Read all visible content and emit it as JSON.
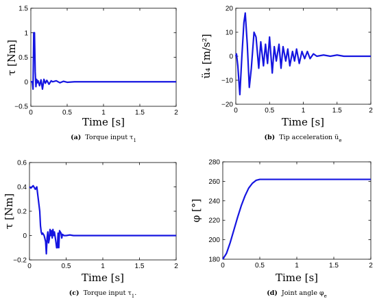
{
  "chart_data": [
    {
      "type": "line",
      "panel": "a",
      "caption_label": "(a)",
      "caption": "Torque input τ",
      "caption_sub": "1",
      "xlabel": "Time [s]",
      "ylabel": "τ [Nm]",
      "xlim": [
        0,
        2
      ],
      "ylim": [
        -0.5,
        1.5
      ],
      "xticks": [
        "0",
        "0.5",
        "1",
        "1.5",
        "2"
      ],
      "yticks": [
        "−0.5",
        "0",
        "0.5",
        "1",
        "1.5"
      ],
      "grid": false,
      "series": [
        {
          "color": "#1515e0",
          "x": [
            0,
            0.02,
            0.03,
            0.04,
            0.05,
            0.06,
            0.07,
            0.08,
            0.09,
            0.1,
            0.12,
            0.14,
            0.16,
            0.18,
            0.2,
            0.22,
            0.25,
            0.28,
            0.3,
            0.35,
            0.4,
            0.45,
            0.5,
            0.6,
            0.8,
            1.0,
            1.2,
            1.4,
            1.6,
            1.8,
            2.0
          ],
          "y": [
            0,
            0,
            -0.15,
            1.0,
            1.0,
            0.2,
            -0.1,
            0.05,
            -0.02,
            0.02,
            -0.08,
            0.04,
            -0.15,
            0.05,
            -0.03,
            0.03,
            -0.05,
            0.02,
            0.0,
            0.02,
            -0.02,
            0.01,
            -0.01,
            0.0,
            0.0,
            0.0,
            0.0,
            0.0,
            0.0,
            0.0,
            0.0
          ]
        }
      ]
    },
    {
      "type": "line",
      "panel": "b",
      "caption_label": "(b)",
      "caption": "Tip acceleration ü",
      "caption_sub": "e",
      "xlabel": "Time [s]",
      "ylabel": "ü₄ [m/s²]",
      "xlim": [
        0,
        2
      ],
      "ylim": [
        -20,
        20
      ],
      "xticks": [
        "0",
        "0.5",
        "1",
        "1.5",
        "2"
      ],
      "yticks": [
        "−20",
        "−10",
        "0",
        "10",
        "20"
      ],
      "grid": false,
      "series": [
        {
          "color": "#1515e0",
          "x": [
            0,
            0.01,
            0.03,
            0.06,
            0.09,
            0.12,
            0.14,
            0.17,
            0.2,
            0.23,
            0.27,
            0.3,
            0.34,
            0.37,
            0.41,
            0.44,
            0.47,
            0.5,
            0.54,
            0.57,
            0.6,
            0.64,
            0.67,
            0.7,
            0.74,
            0.77,
            0.8,
            0.84,
            0.87,
            0.9,
            0.94,
            0.98,
            1.02,
            1.06,
            1.1,
            1.15,
            1.2,
            1.3,
            1.4,
            1.5,
            1.6,
            1.8,
            2.0
          ],
          "y": [
            0,
            1,
            -4,
            -16,
            0,
            14,
            18,
            5,
            -13,
            -5,
            10,
            8,
            -5,
            6,
            -4,
            5,
            -3,
            8,
            -7,
            4,
            -2,
            5,
            -5,
            4,
            -2,
            3,
            -4,
            2,
            -2,
            3,
            -3,
            2,
            -1,
            2,
            -1,
            1,
            0,
            0.5,
            0,
            0.5,
            0,
            0,
            0
          ]
        }
      ]
    },
    {
      "type": "line",
      "panel": "c",
      "caption_label": "(c)",
      "caption": "Torque input τ",
      "caption_sub": "1",
      "caption_suffix": ".",
      "xlabel": "Time [s]",
      "ylabel": "τ [Nm]",
      "xlim": [
        0,
        2
      ],
      "ylim": [
        -0.2,
        0.6
      ],
      "xticks": [
        "0",
        "0.5",
        "1",
        "1.5",
        "2"
      ],
      "yticks": [
        "−0.2",
        "0",
        "0.2",
        "0.4",
        "0.6"
      ],
      "grid": false,
      "series": [
        {
          "color": "#1515e0",
          "x": [
            0,
            0.02,
            0.05,
            0.08,
            0.1,
            0.12,
            0.14,
            0.15,
            0.16,
            0.17,
            0.18,
            0.2,
            0.22,
            0.23,
            0.24,
            0.25,
            0.26,
            0.27,
            0.28,
            0.29,
            0.3,
            0.31,
            0.32,
            0.33,
            0.34,
            0.35,
            0.36,
            0.37,
            0.38,
            0.39,
            0.4,
            0.41,
            0.42,
            0.43,
            0.44,
            0.45,
            0.47,
            0.5,
            0.55,
            0.6,
            0.7,
            0.8,
            1.0,
            1.2,
            1.5,
            1.8,
            2.0
          ],
          "y": [
            0.4,
            0.39,
            0.41,
            0.38,
            0.4,
            0.3,
            0.2,
            0.08,
            0.03,
            0.01,
            0.02,
            0.0,
            -0.05,
            -0.15,
            -0.02,
            0.03,
            -0.06,
            -0.03,
            0.05,
            0.0,
            0.04,
            -0.02,
            0.05,
            0.0,
            0.03,
            -0.01,
            -0.05,
            -0.1,
            -0.1,
            0.02,
            -0.1,
            0.04,
            0.03,
            0.02,
            -0.02,
            0.01,
            0.0,
            0.0,
            0.005,
            0.0,
            0.0,
            0.0,
            0.0,
            0.0,
            0.0,
            0.0,
            0.0
          ]
        }
      ]
    },
    {
      "type": "line",
      "panel": "d",
      "caption_label": "(d)",
      "caption": "Joint angle φ",
      "caption_sub": "e",
      "xlabel": "Time [s]",
      "ylabel": "φ [°]",
      "xlim": [
        0,
        2
      ],
      "ylim": [
        180,
        280
      ],
      "xticks": [
        "0",
        "0.5",
        "1",
        "1.5",
        "2"
      ],
      "yticks": [
        "180",
        "200",
        "220",
        "240",
        "260",
        "280"
      ],
      "grid": false,
      "series": [
        {
          "color": "#1515e0",
          "x": [
            0,
            0.05,
            0.1,
            0.15,
            0.2,
            0.25,
            0.3,
            0.35,
            0.4,
            0.45,
            0.5,
            0.55,
            0.6,
            0.8,
            1.0,
            1.2,
            1.4,
            1.6,
            1.8,
            2.0
          ],
          "y": [
            180,
            186,
            197,
            210,
            223,
            235,
            245,
            253,
            258,
            261,
            262,
            262,
            262,
            262,
            262,
            262,
            262,
            262,
            262,
            262
          ]
        }
      ]
    }
  ]
}
